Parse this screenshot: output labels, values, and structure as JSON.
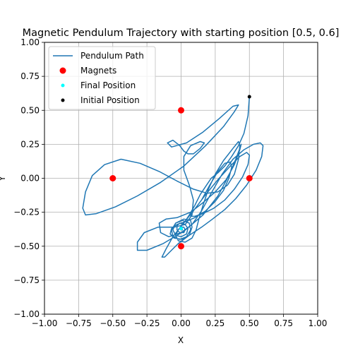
{
  "chart_data": {
    "type": "line",
    "title": "Magnetic Pendulum Trajectory with starting position [0.5, 0.6]",
    "xlabel": "X",
    "ylabel": "Y",
    "xlim": [
      -1.0,
      1.0
    ],
    "ylim": [
      -1.0,
      1.0
    ],
    "xticks": [
      "−1.00",
      "−0.75",
      "−0.50",
      "−0.25",
      "0.00",
      "0.25",
      "0.50",
      "0.75",
      "1.00"
    ],
    "yticks": [
      "−1.00",
      "−0.75",
      "−0.50",
      "−0.25",
      "0.00",
      "0.25",
      "0.50",
      "0.75",
      "1.00"
    ],
    "grid": true,
    "legend_position": "top-left",
    "series": [
      {
        "name": "Pendulum Path",
        "kind": "line",
        "color": "#1f77b4",
        "points": [
          [
            0.5,
            0.6
          ],
          [
            0.49,
            0.46
          ],
          [
            0.46,
            0.33
          ],
          [
            0.42,
            0.24
          ],
          [
            0.37,
            0.16
          ],
          [
            0.32,
            0.09
          ],
          [
            0.27,
            0.04
          ],
          [
            0.22,
            0.0
          ],
          [
            0.18,
            -0.06
          ],
          [
            0.14,
            -0.12
          ],
          [
            0.1,
            -0.2
          ],
          [
            0.06,
            -0.27
          ],
          [
            0.02,
            -0.33
          ],
          [
            -0.02,
            -0.38
          ],
          [
            -0.04,
            -0.42
          ],
          [
            -0.02,
            -0.46
          ],
          [
            0.03,
            -0.47
          ],
          [
            0.08,
            -0.44
          ],
          [
            0.11,
            -0.38
          ],
          [
            0.13,
            -0.3
          ],
          [
            0.16,
            -0.2
          ],
          [
            0.2,
            -0.08
          ],
          [
            0.25,
            0.03
          ],
          [
            0.31,
            0.13
          ],
          [
            0.38,
            0.22
          ],
          [
            0.42,
            0.27
          ],
          [
            0.43,
            0.24
          ],
          [
            0.42,
            0.14
          ],
          [
            0.39,
            0.03
          ],
          [
            0.34,
            -0.05
          ],
          [
            0.27,
            -0.1
          ],
          [
            0.19,
            -0.11
          ],
          [
            0.09,
            -0.08
          ],
          [
            -0.03,
            -0.02
          ],
          [
            -0.16,
            0.05
          ],
          [
            -0.3,
            0.11
          ],
          [
            -0.44,
            0.14
          ],
          [
            -0.56,
            0.1
          ],
          [
            -0.65,
            0.02
          ],
          [
            -0.7,
            -0.1
          ],
          [
            -0.72,
            -0.22
          ],
          [
            -0.7,
            -0.27
          ],
          [
            -0.62,
            -0.26
          ],
          [
            -0.48,
            -0.21
          ],
          [
            -0.32,
            -0.13
          ],
          [
            -0.15,
            -0.03
          ],
          [
            0.02,
            0.09
          ],
          [
            0.18,
            0.24
          ],
          [
            0.31,
            0.38
          ],
          [
            0.39,
            0.49
          ],
          [
            0.42,
            0.54
          ],
          [
            0.38,
            0.53
          ],
          [
            0.28,
            0.44
          ],
          [
            0.16,
            0.34
          ],
          [
            0.04,
            0.26
          ],
          [
            -0.07,
            0.23
          ],
          [
            -0.1,
            0.26
          ],
          [
            -0.06,
            0.28
          ],
          [
            -0.01,
            0.24
          ],
          [
            0.02,
            0.2
          ],
          [
            0.05,
            0.18
          ],
          [
            0.09,
            0.18
          ],
          [
            0.14,
            0.22
          ],
          [
            0.17,
            0.26
          ],
          [
            0.14,
            0.27
          ],
          [
            0.07,
            0.24
          ],
          [
            0.02,
            0.16
          ],
          [
            0.02,
            0.06
          ],
          [
            0.06,
            -0.05
          ],
          [
            0.09,
            -0.16
          ],
          [
            0.08,
            -0.27
          ],
          [
            0.03,
            -0.34
          ],
          [
            -0.05,
            -0.36
          ],
          [
            -0.17,
            -0.36
          ],
          [
            -0.27,
            -0.4
          ],
          [
            -0.32,
            -0.47
          ],
          [
            -0.32,
            -0.53
          ],
          [
            -0.25,
            -0.53
          ],
          [
            -0.13,
            -0.48
          ],
          [
            0.02,
            -0.39
          ],
          [
            0.16,
            -0.27
          ],
          [
            0.27,
            -0.13
          ],
          [
            0.35,
            0.02
          ],
          [
            0.4,
            0.14
          ],
          [
            0.43,
            0.22
          ],
          [
            0.44,
            0.25
          ],
          [
            0.43,
            0.21
          ],
          [
            0.39,
            0.1
          ],
          [
            0.33,
            -0.01
          ],
          [
            0.25,
            -0.1
          ],
          [
            0.16,
            -0.18
          ],
          [
            0.07,
            -0.25
          ],
          [
            -0.03,
            -0.29
          ],
          [
            -0.11,
            -0.3
          ],
          [
            -0.16,
            -0.33
          ],
          [
            -0.15,
            -0.4
          ],
          [
            -0.09,
            -0.43
          ],
          [
            0.0,
            -0.4
          ],
          [
            0.08,
            -0.34
          ],
          [
            0.15,
            -0.24
          ],
          [
            0.22,
            -0.11
          ],
          [
            0.3,
            0.03
          ],
          [
            0.38,
            0.14
          ],
          [
            0.46,
            0.21
          ],
          [
            0.53,
            0.25
          ],
          [
            0.58,
            0.26
          ],
          [
            0.6,
            0.24
          ],
          [
            0.59,
            0.16
          ],
          [
            0.55,
            0.06
          ],
          [
            0.48,
            -0.05
          ],
          [
            0.4,
            -0.15
          ],
          [
            0.32,
            -0.23
          ],
          [
            0.23,
            -0.3
          ],
          [
            0.15,
            -0.36
          ],
          [
            0.06,
            -0.42
          ],
          [
            -0.02,
            -0.48
          ],
          [
            -0.08,
            -0.54
          ],
          [
            -0.12,
            -0.58
          ],
          [
            -0.14,
            -0.58
          ],
          [
            -0.11,
            -0.52
          ],
          [
            -0.06,
            -0.43
          ],
          [
            0.01,
            -0.34
          ],
          [
            0.09,
            -0.24
          ],
          [
            0.18,
            -0.12
          ],
          [
            0.27,
            -0.01
          ],
          [
            0.36,
            0.09
          ],
          [
            0.43,
            0.16
          ],
          [
            0.48,
            0.19
          ],
          [
            0.5,
            0.17
          ],
          [
            0.49,
            0.1
          ],
          [
            0.45,
            0.01
          ],
          [
            0.39,
            -0.08
          ],
          [
            0.32,
            -0.16
          ],
          [
            0.24,
            -0.22
          ],
          [
            0.16,
            -0.26
          ],
          [
            0.1,
            -0.28
          ],
          [
            0.07,
            -0.28
          ],
          [
            0.09,
            -0.24
          ],
          [
            0.15,
            -0.16
          ],
          [
            0.21,
            -0.05
          ],
          [
            0.27,
            0.05
          ],
          [
            0.32,
            0.11
          ],
          [
            0.36,
            0.12
          ],
          [
            0.37,
            0.08
          ],
          [
            0.35,
            0.0
          ],
          [
            0.31,
            -0.09
          ],
          [
            0.25,
            -0.17
          ],
          [
            0.18,
            -0.24
          ],
          [
            0.1,
            -0.29
          ],
          [
            0.03,
            -0.32
          ],
          [
            -0.03,
            -0.34
          ],
          [
            -0.07,
            -0.37
          ],
          [
            -0.08,
            -0.41
          ],
          [
            -0.05,
            -0.44
          ],
          [
            0.01,
            -0.45
          ],
          [
            0.06,
            -0.42
          ],
          [
            0.08,
            -0.36
          ],
          [
            0.07,
            -0.31
          ],
          [
            0.02,
            -0.3
          ],
          [
            -0.04,
            -0.33
          ],
          [
            -0.07,
            -0.38
          ],
          [
            -0.06,
            -0.43
          ],
          [
            -0.01,
            -0.45
          ],
          [
            0.04,
            -0.43
          ],
          [
            0.07,
            -0.38
          ],
          [
            0.06,
            -0.33
          ],
          [
            0.01,
            -0.31
          ],
          [
            -0.04,
            -0.33
          ],
          [
            -0.06,
            -0.38
          ],
          [
            -0.04,
            -0.42
          ],
          [
            0.0,
            -0.43
          ],
          [
            0.04,
            -0.41
          ],
          [
            0.05,
            -0.37
          ],
          [
            0.03,
            -0.34
          ],
          [
            -0.01,
            -0.33
          ],
          [
            -0.03,
            -0.35
          ],
          [
            -0.03,
            -0.38
          ],
          [
            -0.01,
            -0.4
          ],
          [
            0.02,
            -0.4
          ],
          [
            0.03,
            -0.38
          ],
          [
            0.02,
            -0.36
          ],
          [
            0.0,
            -0.36
          ],
          [
            -0.01,
            -0.37
          ],
          [
            -0.0,
            -0.38
          ],
          [
            0.01,
            -0.38
          ],
          [
            0.0,
            -0.37
          ]
        ]
      },
      {
        "name": "Magnets",
        "kind": "scatter",
        "color": "#ff0000",
        "points": [
          [
            0.5,
            0.0
          ],
          [
            -0.5,
            0.0
          ],
          [
            0.0,
            0.5
          ],
          [
            0.0,
            -0.5
          ]
        ]
      },
      {
        "name": "Final Position",
        "kind": "scatter",
        "color": "#00ffff",
        "points": [
          [
            0.0,
            -0.37
          ]
        ]
      },
      {
        "name": "Initial Position",
        "kind": "scatter",
        "color": "#000000",
        "points": [
          [
            0.5,
            0.6
          ]
        ]
      }
    ]
  }
}
